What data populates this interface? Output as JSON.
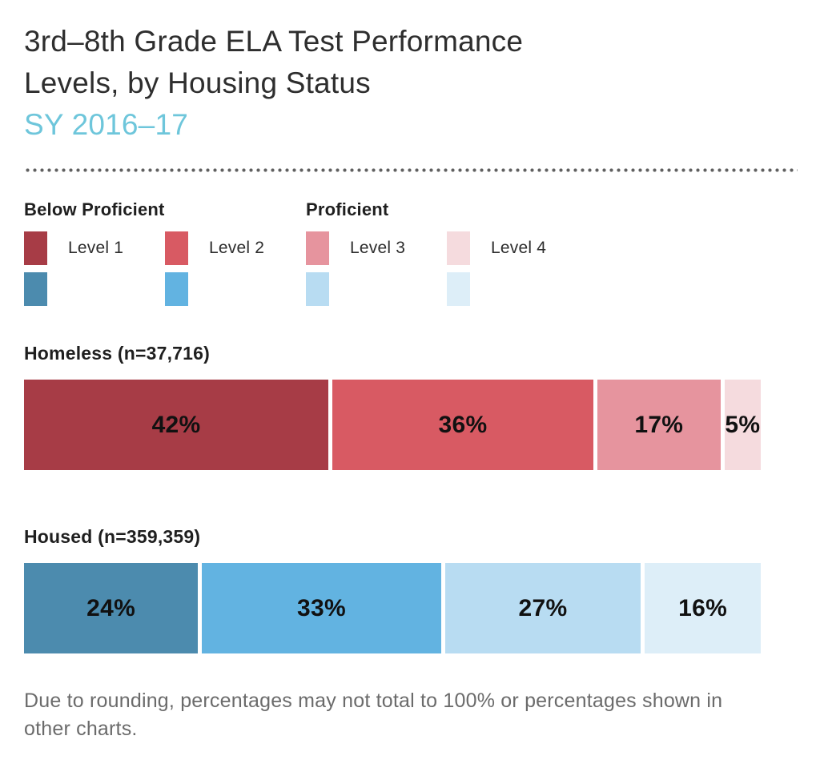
{
  "header": {
    "title_line1": "3rd–8th Grade ELA Test Performance",
    "title_line2": "Levels, by Housing Status",
    "subtitle": "SY 2016–17",
    "subtitle_color": "#6ec6db"
  },
  "legend": {
    "group1_label": "Below Proficient",
    "group2_label": "Proficient",
    "items": [
      {
        "label": "Level 1",
        "red": "#a73c46",
        "blue": "#4c8bae"
      },
      {
        "label": "Level 2",
        "red": "#d85a63",
        "blue": "#62b3e1"
      },
      {
        "label": "Level 3",
        "red": "#e6949e",
        "blue": "#b8dcf2"
      },
      {
        "label": "Level 4",
        "red": "#f5dbde",
        "blue": "#ddeef8"
      }
    ]
  },
  "chart_data": {
    "type": "bar",
    "subtype": "horizontal-stacked-100pct",
    "title": "3rd–8th Grade ELA Test Performance Levels, by Housing Status",
    "subtitle": "SY 2016–17",
    "categories": [
      "Level 1",
      "Level 2",
      "Level 3",
      "Level 4"
    ],
    "value_suffix": "%",
    "xlim": [
      0,
      100
    ],
    "legend_position": "top",
    "series": [
      {
        "name": "Homeless (n=37,716)",
        "values": [
          42,
          36,
          17,
          5
        ],
        "colors": [
          "#a73c46",
          "#d85a63",
          "#e6949e",
          "#f5dbde"
        ]
      },
      {
        "name": "Housed (n=359,359)",
        "values": [
          24,
          33,
          27,
          16
        ],
        "colors": [
          "#4c8bae",
          "#62b3e1",
          "#b8dcf2",
          "#ddeef8"
        ]
      }
    ]
  },
  "footnote": {
    "line1": "Due to rounding, percentages may not total to 100% or percentages shown in",
    "line2": "other charts."
  }
}
